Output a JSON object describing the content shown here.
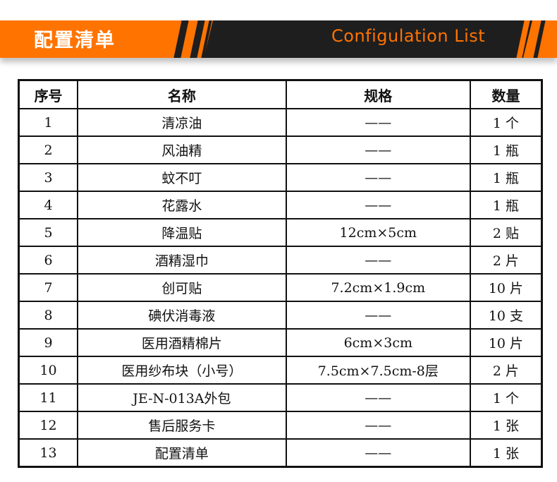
{
  "banner": {
    "title_cn": "配置清单",
    "title_en": "Configulation List",
    "colors": {
      "orange": "#ff7300",
      "dark": "#1e1e1e"
    }
  },
  "table": {
    "headers": [
      "序号",
      "名称",
      "规格",
      "数量"
    ],
    "rows": [
      [
        "1",
        "清凉油",
        "——",
        "1 个"
      ],
      [
        "2",
        "风油精",
        "——",
        "1 瓶"
      ],
      [
        "3",
        "蚊不叮",
        "——",
        "1 瓶"
      ],
      [
        "4",
        "花露水",
        "——",
        "1 瓶"
      ],
      [
        "5",
        "降温贴",
        "12cm×5cm",
        "2 贴"
      ],
      [
        "6",
        "酒精湿巾",
        "——",
        "2 片"
      ],
      [
        "7",
        "创可贴",
        "7.2cm×1.9cm",
        "10 片"
      ],
      [
        "8",
        "碘伏消毒液",
        "——",
        "10 支"
      ],
      [
        "9",
        "医用酒精棉片",
        "6cm×3cm",
        "10 片"
      ],
      [
        "10",
        "医用纱布块（小号）",
        "7.5cm×7.5cm-8层",
        "2 片"
      ],
      [
        "11",
        "JE-N-013A外包",
        "——",
        "1 个"
      ],
      [
        "12",
        "售后服务卡",
        "——",
        "1 张"
      ],
      [
        "13",
        "配置清单",
        "——",
        "1 张"
      ]
    ]
  }
}
